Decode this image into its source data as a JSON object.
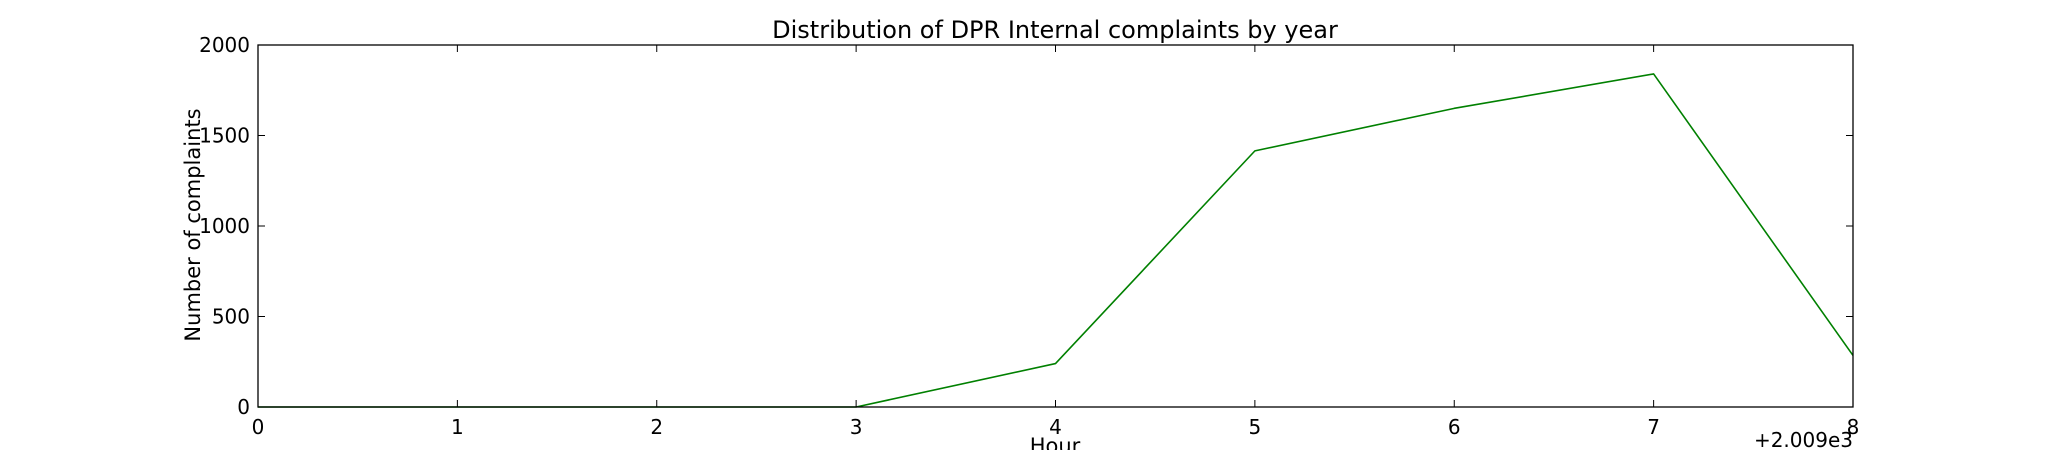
{
  "chart_data": {
    "type": "line",
    "title": "Distribution of  DPR Internal complaints by year",
    "xlabel": "Hour",
    "ylabel": "Number of complaints",
    "x_offset_label": "+2.009e3",
    "xlim": [
      0,
      8
    ],
    "ylim": [
      0,
      2000
    ],
    "x_ticks": [
      0,
      1,
      2,
      3,
      4,
      5,
      6,
      7,
      8
    ],
    "x_tick_labels": [
      "0",
      "1",
      "2",
      "3",
      "4",
      "5",
      "6",
      "7",
      "8"
    ],
    "y_ticks": [
      0,
      500,
      1000,
      1500,
      2000
    ],
    "y_tick_labels": [
      "0",
      "500",
      "1000",
      "1500",
      "2000"
    ],
    "grid": false,
    "series": [
      {
        "color": "#008000",
        "x": [
          0,
          1,
          2,
          3,
          4,
          5,
          6,
          7,
          8
        ],
        "values": [
          0,
          0,
          0,
          0,
          240,
          1415,
          1650,
          1840,
          285
        ]
      }
    ]
  }
}
